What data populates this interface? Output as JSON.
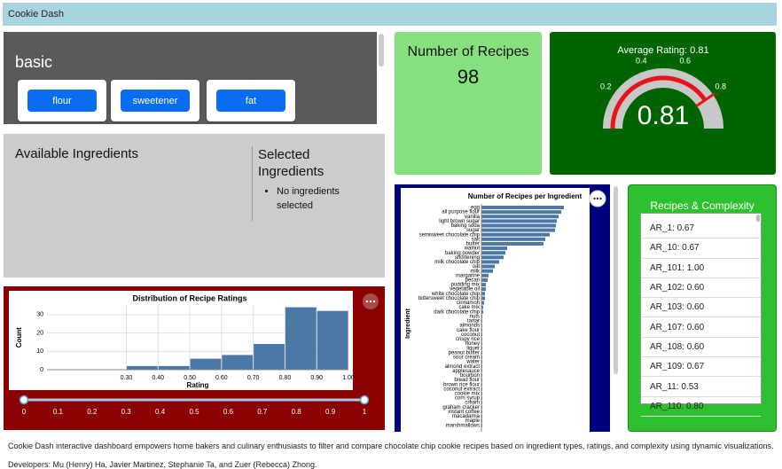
{
  "header": {
    "title": "Cookie Dash"
  },
  "filters": {
    "group": "basic",
    "buttons": [
      "flour",
      "sweetener",
      "fat"
    ]
  },
  "ingredients": {
    "available_title": "Available Ingredients",
    "selected_title": "Selected Ingredients",
    "selected": [
      "No ingredients selected"
    ]
  },
  "recipe_count": {
    "title": "Number of Recipes",
    "value": 98
  },
  "chart_data": [
    {
      "type": "gauge",
      "title": "Average Rating: 0.81",
      "value": 0.81,
      "ylim": [
        0,
        1
      ],
      "yticks": [
        0.2,
        0.4,
        0.6,
        0.8
      ],
      "color": "#e8141c",
      "track_color": "#c8c8c8"
    },
    {
      "type": "histogram",
      "title": "Distribution of Recipe Ratings",
      "x_label": "Rating",
      "y_label": "Count",
      "bins": [
        0.3,
        0.4,
        0.5,
        0.6,
        0.7,
        0.8,
        0.9,
        1.0
      ],
      "values": [
        2,
        2,
        6,
        8,
        14,
        34,
        32
      ],
      "color": "#4c78a8",
      "xlim": [
        0.05,
        1.0
      ],
      "xticks": [
        {
          "value": 0.3,
          "label": "0.30"
        },
        {
          "value": 0.4,
          "label": "0.40"
        },
        {
          "value": 0.5,
          "label": "0.50"
        },
        {
          "value": 0.6,
          "label": "0.60"
        },
        {
          "value": 0.7,
          "label": "0.70"
        },
        {
          "value": 0.8,
          "label": "0.80"
        },
        {
          "value": 0.9,
          "label": "0.90"
        },
        {
          "value": 1.0,
          "label": "1.00"
        }
      ],
      "ylim": [
        0,
        35
      ],
      "yticks": [
        0,
        10,
        20,
        30
      ],
      "grid": true
    },
    {
      "type": "bar",
      "orientation": "horizontal",
      "title": "Number of Recipes per Ingredient",
      "y_label": "Ingredient",
      "color": "#4c78a8",
      "xlim": [
        0,
        95
      ],
      "categories": [
        "egg",
        "all purpose flour",
        "vanilla",
        "light brown sugar",
        "baking soda",
        "sugar",
        "semisweet chocolate chip",
        "salt",
        "butter",
        "walnut",
        "baking powder",
        "shortening",
        "milk chocolate chip",
        "oat",
        "milk",
        "margarine",
        "pecan",
        "pudding mix",
        "vegetable oil",
        "white chocolate chip",
        "bittersweet chocolate chip",
        "cinnamon",
        "cake mix",
        "dark chocolate chip",
        "nuts",
        "tartar",
        "almonds",
        "cake flour",
        "coconut",
        "crispy rice",
        "honey",
        "liquer",
        "peanut butter",
        "sour cream",
        "water",
        "almond extract",
        "applesauce",
        "bourbon",
        "bread flour",
        "brown rice flour",
        "coconut extract",
        "cookie mix",
        "corn syrup",
        "cream",
        "graham cracker",
        "instant coffee",
        "macadamia",
        "maple",
        "marshmallows"
      ],
      "values": [
        93,
        90,
        87,
        85,
        84,
        83,
        77,
        72,
        70,
        29,
        27,
        25,
        20,
        15,
        13,
        8,
        7,
        5,
        5,
        4,
        4,
        3,
        2,
        2,
        1,
        1,
        1,
        1,
        1,
        1,
        1,
        1,
        1,
        1,
        1,
        1,
        1,
        1,
        1,
        1,
        1,
        1,
        1,
        1,
        1,
        1,
        1,
        1,
        1
      ]
    }
  ],
  "rating_slider": {
    "range": [
      0,
      1
    ],
    "ticks": [
      0,
      0.1,
      0.2,
      0.3,
      0.4,
      0.5,
      0.6,
      0.7,
      0.8,
      0.9,
      1
    ]
  },
  "recipe_list": {
    "title": "Recipes & Complexity",
    "items": [
      "AR_1: 0.67",
      "AR_10: 0.67",
      "AR_101: 1.00",
      "AR_102: 0.60",
      "AR_103: 0.60",
      "AR_107: 0.60",
      "AR_108: 0.60",
      "AR_109: 0.67",
      "AR_11: 0.53",
      "AR_110: 0.80"
    ]
  },
  "footer": {
    "description": "Cookie Dash interactive dashboard empowers home bakers and culinary enthusiasts to filter and compare chocolate chip cookie recipes based on ingredient types, ratings, and complexity using dynamic visualizations.",
    "developers": "Developers: Mu (Henry) Ha, Javier Martinez, Stephanie Ta, and Zuer (Rebecca) Zhong."
  }
}
